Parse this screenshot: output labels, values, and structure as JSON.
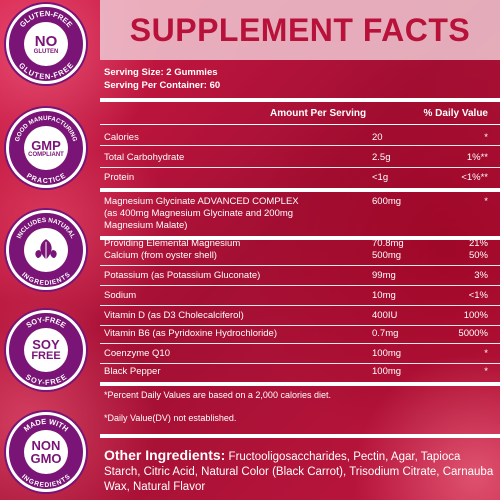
{
  "title": "SUPPLEMENT FACTS",
  "serving_size": "Serving Size: 2 Gummies",
  "servings_per_container": "Serving Per Container: 60",
  "header": {
    "amount": "Amount Per Serving",
    "dv": "% Daily Value"
  },
  "rows": [
    {
      "name": "Calories",
      "amount": "20",
      "dv": "*"
    },
    {
      "name": "Total Carbohydrate",
      "amount": "2.5g",
      "dv": "1%**"
    },
    {
      "name": "Protein",
      "amount": "<1g",
      "dv": "<1%**"
    },
    {
      "name": "Magnesium Glycinate ADVANCED COMPLEX",
      "name2": "(as 400mg Magnesium Glycinate and 200mg",
      "name3": "Magnesium Malate)",
      "amount": "600mg",
      "dv": "*"
    },
    {
      "name": "Providing Elemental Magnesium",
      "amount": "70.8mg",
      "dv": "21%"
    },
    {
      "name": "Calcium (from oyster shell)",
      "amount": "500mg",
      "dv": "50%"
    },
    {
      "name": "Potassium (as Potassium Gluconate)",
      "amount": "99mg",
      "dv": "3%"
    },
    {
      "name": "Sodium",
      "amount": "10mg",
      "dv": "<1%"
    },
    {
      "name": "Vitamin D (as D3 Cholecalciferol)",
      "amount": "400IU",
      "dv": "100%"
    },
    {
      "name": "Vitamin B6 (as Pyridoxine Hydrochloride)",
      "amount": "0.7mg",
      "dv": "5000%"
    },
    {
      "name": "Coenzyme Q10",
      "amount": "100mg",
      "dv": "*"
    },
    {
      "name": "Black Pepper",
      "amount": "100mg",
      "dv": "*"
    }
  ],
  "footnote1": "*Percent Daily Values are based on a 2,000 calories diet.",
  "footnote2": "*Daily Value(DV) not established.",
  "other_label": "Other Ingredients:",
  "other_text": " Fructooligosaccharides, Pectin, Agar, Tapioca Starch, Citric Acid, Natural Color (Black Carrot), Trisodium Citrate, Carnauba Wax, Natural Flavor",
  "badges": [
    {
      "ring_top": "GLUTEN-FREE",
      "ring_bottom": "GLUTEN-FREE",
      "main": "NO",
      "sub": "GLUTEN",
      "icon": "no-gluten-icon"
    },
    {
      "ring_top": "GOOD MANUFACTURING",
      "ring_bottom": "PRACTICE",
      "main": "GMP",
      "sub": "COMPLIANT",
      "icon": "gmp-icon"
    },
    {
      "ring_top": "INCLUDES NATURAL",
      "ring_bottom": "INGREDIENTS",
      "main": "",
      "sub": "",
      "icon": "leaf-icon"
    },
    {
      "ring_top": "SOY-FREE",
      "ring_bottom": "SOY-FREE",
      "main": "SOY",
      "sub": "FREE",
      "icon": "soy-free-icon"
    },
    {
      "ring_top": "MADE WITH",
      "ring_bottom": "INGREDIENTS",
      "main": "NON",
      "sub": "GMO",
      "icon": "non-gmo-icon"
    }
  ],
  "colors": {
    "brand": "#b8123a",
    "badge": "#7a1476",
    "text": "#ffffff"
  }
}
